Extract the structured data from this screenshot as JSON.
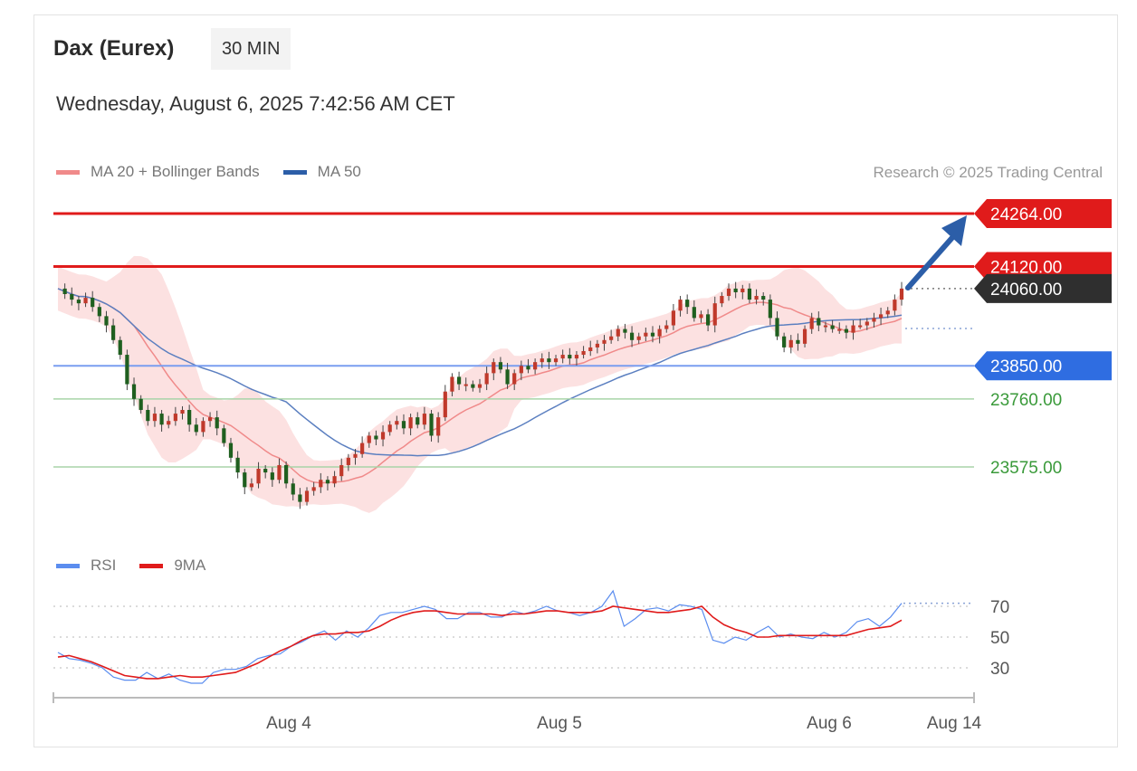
{
  "header": {
    "instrument": "Dax (Eurex)",
    "timeframe": "30 MIN",
    "timestamp": "Wednesday, August 6, 2025 7:42:56 AM CET"
  },
  "legend": {
    "ma20_label": "MA 20 + Bollinger Bands",
    "ma50_label": "MA 50",
    "credit": "Research © 2025 Trading Central"
  },
  "rsi_legend": {
    "rsi_label": "RSI",
    "ma_label": "9MA"
  },
  "colors": {
    "resistance": "#e01b1b",
    "support": "#2f6de1",
    "target": "#3a9a3a",
    "ma20": "#f08a8a",
    "ma50": "#5b7fc0",
    "band_fill": "#fcdede",
    "candle_up": "#c0392b",
    "candle_down": "#1f5f1f",
    "rsi": "#5b8def",
    "rsi_ma": "#e01b1b",
    "arrow": "#2c5ea8",
    "last_price": "#333333"
  },
  "chart_data": {
    "type": "candlestick",
    "x_labels": [
      "Aug 4",
      "Aug 5",
      "Aug 6",
      "Aug 14"
    ],
    "price_levels": [
      {
        "value": "24264.00",
        "kind": "resistance"
      },
      {
        "value": "24120.00",
        "kind": "resistance"
      },
      {
        "value": "24060.00",
        "kind": "last"
      },
      {
        "value": "23850.00",
        "kind": "support"
      },
      {
        "value": "23760.00",
        "kind": "target"
      },
      {
        "value": "23575.00",
        "kind": "target"
      }
    ],
    "close": [
      24060,
      24045,
      24030,
      24020,
      24035,
      24010,
      23985,
      23960,
      23920,
      23880,
      23800,
      23760,
      23730,
      23700,
      23720,
      23690,
      23700,
      23720,
      23730,
      23690,
      23670,
      23700,
      23710,
      23680,
      23640,
      23600,
      23560,
      23520,
      23530,
      23570,
      23560,
      23540,
      23580,
      23530,
      23500,
      23480,
      23510,
      23520,
      23540,
      23530,
      23550,
      23580,
      23600,
      23610,
      23640,
      23660,
      23650,
      23670,
      23690,
      23700,
      23680,
      23710,
      23690,
      23720,
      23660,
      23710,
      23780,
      23820,
      23800,
      23800,
      23790,
      23800,
      23830,
      23860,
      23840,
      23800,
      23830,
      23850,
      23840,
      23860,
      23870,
      23860,
      23870,
      23880,
      23870,
      23880,
      23890,
      23900,
      23910,
      23920,
      23930,
      23950,
      23940,
      23920,
      23930,
      23940,
      23930,
      23950,
      23960,
      24000,
      24030,
      24010,
      23980,
      23990,
      23960,
      24020,
      24040,
      24060,
      24050,
      24060,
      24030,
      24040,
      24030,
      23980,
      23930,
      23900,
      23920,
      23910,
      23950,
      23980,
      23960,
      23960,
      23950,
      23950,
      23940,
      23960,
      23960,
      23970,
      23980,
      23990,
      24000,
      24030,
      24060
    ],
    "rsi": [
      40,
      36,
      35,
      33,
      30,
      24,
      22,
      22,
      27,
      23,
      26,
      22,
      20,
      20,
      27,
      29,
      29,
      31,
      36,
      38,
      39,
      44,
      47,
      51,
      54,
      48,
      54,
      50,
      56,
      64,
      66,
      66,
      68,
      70,
      68,
      62,
      62,
      66,
      66,
      63,
      63,
      67,
      65,
      67,
      70,
      67,
      66,
      64,
      66,
      70,
      80,
      57,
      62,
      68,
      69,
      67,
      71,
      70,
      68,
      48,
      46,
      50,
      48,
      53,
      57,
      50,
      52,
      50,
      49,
      53,
      50,
      53,
      60,
      62,
      57,
      63,
      72
    ],
    "rsi_ma": [
      37,
      38,
      36,
      34,
      31,
      28,
      25,
      24,
      23,
      23,
      24,
      25,
      24,
      24,
      25,
      26,
      27,
      30,
      33,
      37,
      41,
      44,
      48,
      51,
      52,
      52,
      53,
      53,
      54,
      57,
      61,
      64,
      66,
      67,
      67,
      66,
      65,
      65,
      65,
      65,
      64,
      65,
      65,
      66,
      67,
      67,
      66,
      66,
      66,
      67,
      70,
      69,
      68,
      67,
      66,
      66,
      67,
      68,
      70,
      63,
      58,
      55,
      53,
      50,
      50,
      51,
      51,
      51,
      51,
      51,
      51,
      51,
      53,
      55,
      56,
      57,
      61
    ],
    "rsi_levels": [
      "70",
      "50",
      "30"
    ],
    "indicators": [
      "MA 20 + Bollinger Bands",
      "MA 50",
      "RSI",
      "9MA"
    ]
  }
}
